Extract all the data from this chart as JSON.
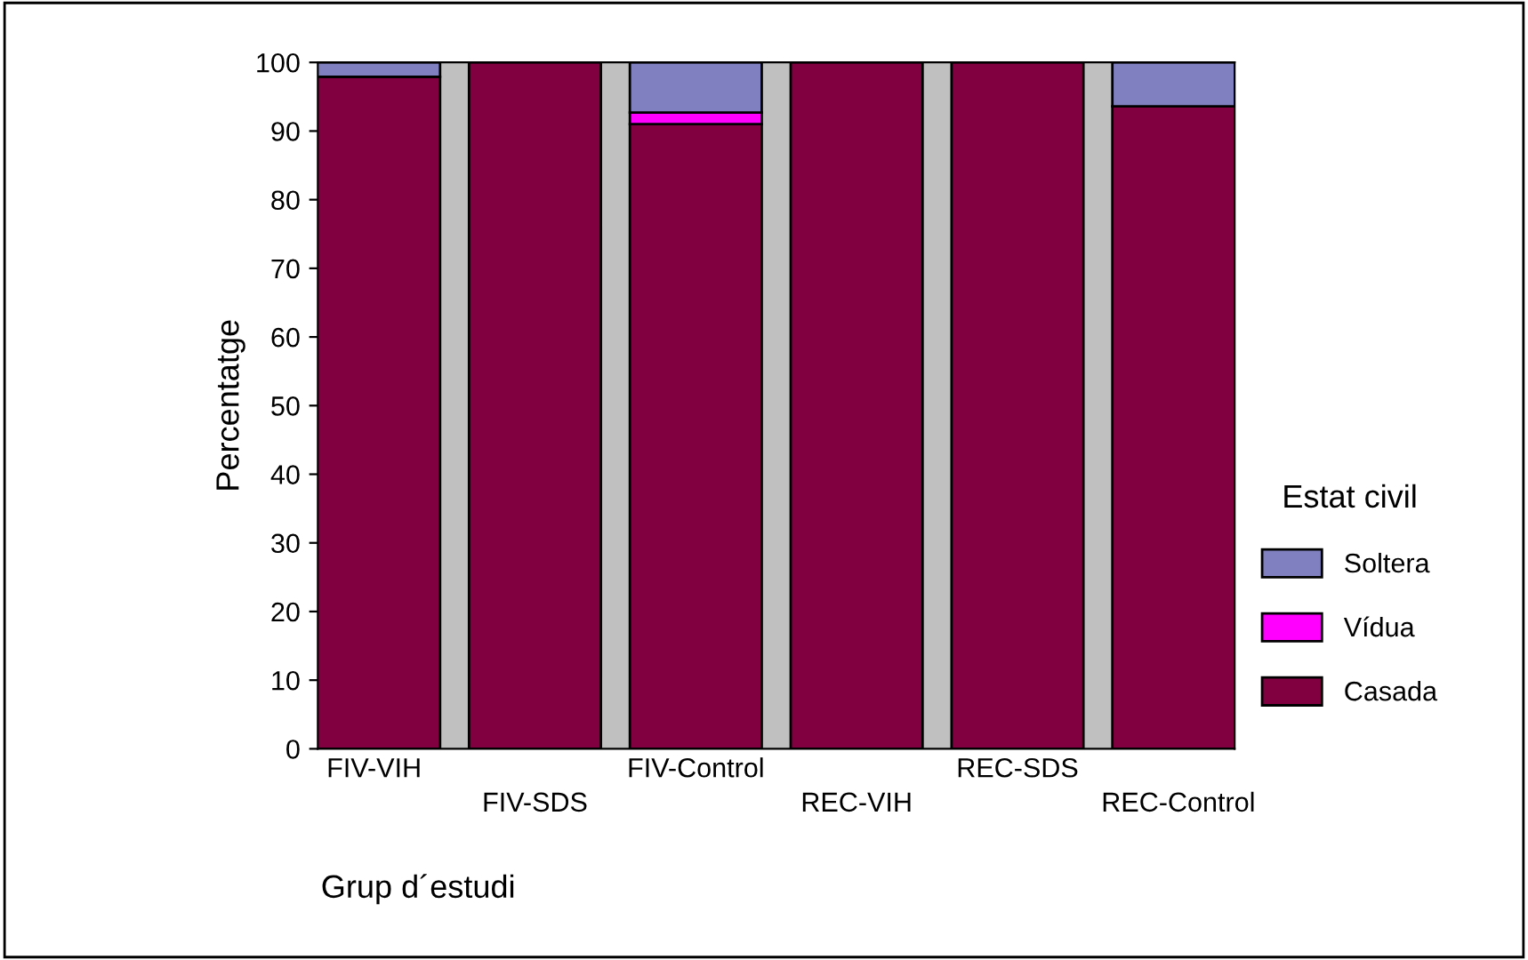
{
  "chart_data": {
    "type": "bar",
    "stacked": true,
    "xlabel": "Grup d´estudi",
    "ylabel": "Percentatge",
    "legend_title": "Estat civil",
    "legend": "right",
    "grid": false,
    "categories": [
      "FIV-VIH",
      "FIV-SDS",
      "FIV-Control",
      "REC-VIH",
      "REC-SDS",
      "REC-Control"
    ],
    "ylim": [
      0,
      100
    ],
    "yticks": [
      0,
      10,
      20,
      30,
      40,
      50,
      60,
      70,
      80,
      90,
      100
    ],
    "series": [
      {
        "name": "Casada",
        "color": "#800040",
        "values": [
          97.9,
          100,
          91.0,
          100,
          100,
          93.6
        ]
      },
      {
        "name": "Vídua",
        "color": "#ff00ff",
        "values": [
          null,
          null,
          1.7,
          null,
          null,
          null
        ]
      },
      {
        "name": "Soltera",
        "color": "#8080c0",
        "values": [
          2.1,
          null,
          7.3,
          null,
          null,
          6.4
        ]
      }
    ]
  }
}
